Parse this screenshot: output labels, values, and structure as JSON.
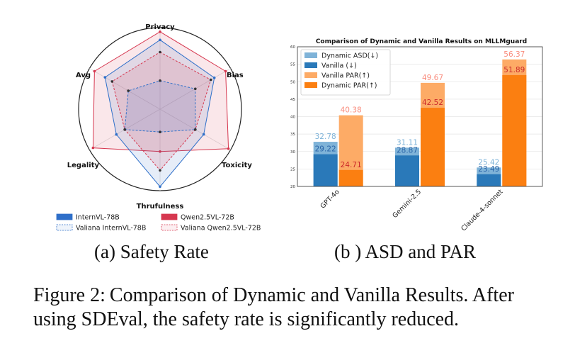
{
  "figure": {
    "subcaption_a": "(a) Safety Rate",
    "subcaption_b": "(b ) ASD and PAR",
    "caption_label": "Figure 2:",
    "caption_text": "Comparison of Dynamic and Vanilla Results. After using SDEval, the safety rate is significantly reduced."
  },
  "chart_data": [
    {
      "type": "radar",
      "title": "",
      "axes": [
        "Privacy",
        "Bias",
        "Toxicity",
        "Thrufulness",
        "Legality",
        "Avg"
      ],
      "range": [
        0,
        1
      ],
      "grid": false,
      "legend_position": "bottom",
      "series": [
        {
          "name": "InternVL-78B",
          "values": [
            0.85,
            0.77,
            0.62,
            0.95,
            0.62,
            0.78
          ],
          "color": "#2e6fc9",
          "dashed": false
        },
        {
          "name": "Qwen2.5VL-72B",
          "values": [
            0.95,
            0.93,
            0.97,
            0.52,
            0.95,
            0.93
          ],
          "color": "#d6374f",
          "dashed": false
        },
        {
          "name": "Valiana InternVL-78B",
          "values": [
            0.35,
            0.5,
            0.5,
            0.28,
            0.5,
            0.45
          ],
          "color": "#2e6fc9",
          "dashed": true
        },
        {
          "name": "Valiana Qwen2.5VL-72B",
          "values": [
            0.7,
            0.72,
            0.5,
            0.75,
            0.5,
            0.68
          ],
          "color": "#d6374f",
          "dashed": true
        }
      ]
    },
    {
      "type": "bar",
      "title": "Comparison of Dynamic and Vanilla Results on MLLMguard",
      "xlabel": "",
      "ylabel": "",
      "ylim": [
        20,
        60
      ],
      "yticks": [
        20,
        25,
        30,
        35,
        40,
        45,
        50,
        55,
        60
      ],
      "categories": [
        "GPT-4o",
        "Gemini-2.5",
        "Claude-4-sonnet"
      ],
      "grid": true,
      "legend_position": "top-left",
      "groups": [
        {
          "name_back": "Dynamic ASD(↓)",
          "name_front": "Vanilla (↓)",
          "color_back": "#7fb3d8",
          "color_front": "#2a79b9",
          "label_color_back": "#7fb3d8",
          "label_color_front": "#2a65a8",
          "back": [
            32.78,
            31.11,
            25.42
          ],
          "front": [
            29.22,
            28.87,
            23.49
          ]
        },
        {
          "name_back": "Vanilla PAR(↑)",
          "name_front": "Dynamic PAR(↑)",
          "color_back": "#fdab66",
          "color_front": "#fb7f11",
          "label_color_back": "#f98c7d",
          "label_color_front": "#cc2a2a",
          "back": [
            40.38,
            49.67,
            56.37
          ],
          "front": [
            24.71,
            42.52,
            51.89
          ]
        }
      ]
    }
  ]
}
